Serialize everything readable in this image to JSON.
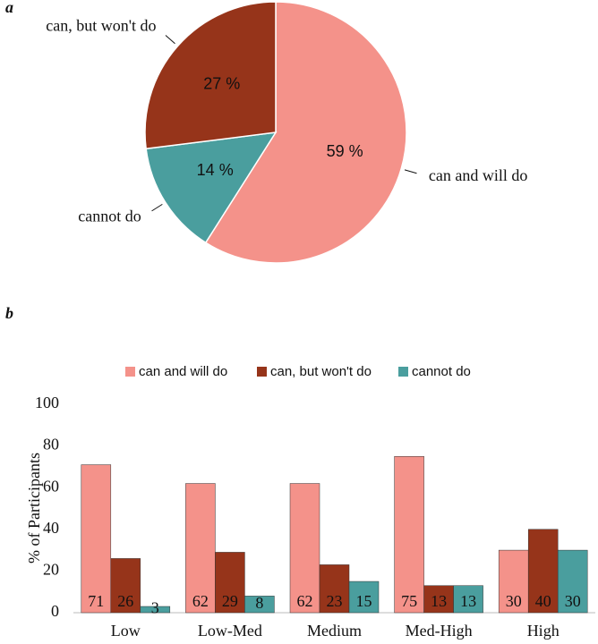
{
  "chart_data": [
    {
      "type": "pie",
      "panel_label": "a",
      "categories": [
        "can and will do",
        "cannot do",
        "can, but won't do"
      ],
      "values": [
        59,
        14,
        27
      ],
      "value_labels": [
        "59 %",
        "14 %",
        "27 %"
      ],
      "colors": [
        "#f4928a",
        "#4a9e9e",
        "#96341a"
      ]
    },
    {
      "type": "bar",
      "panel_label": "b",
      "categories": [
        "Low",
        "Low-Med",
        "Medium",
        "Med-High",
        "High"
      ],
      "series": [
        {
          "name": "can and will do",
          "color": "#f4928a",
          "values": [
            71,
            62,
            62,
            75,
            30
          ]
        },
        {
          "name": "can, but won't do",
          "color": "#96341a",
          "values": [
            26,
            29,
            23,
            13,
            40
          ]
        },
        {
          "name": "cannot do",
          "color": "#4a9e9e",
          "values": [
            3,
            8,
            15,
            13,
            30
          ]
        }
      ],
      "y_label": "% of Participants",
      "ylim": [
        0,
        100
      ],
      "yticks": [
        0,
        20,
        40,
        60,
        80,
        100
      ],
      "legend": "top"
    }
  ]
}
